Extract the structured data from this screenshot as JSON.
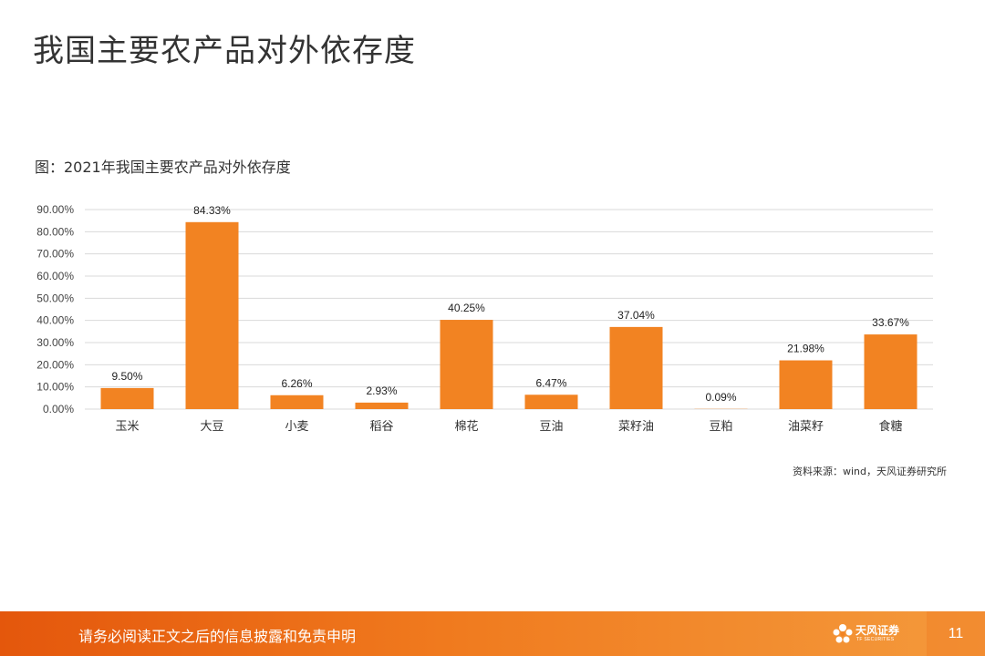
{
  "title": "我国主要农产品对外依存度",
  "caption": "图：2021年我国主要农产品对外依存度",
  "source": "资料来源：wind，天风证券研究所",
  "footer": {
    "disclaimer": "请务必阅读正文之后的信息披露和免责申明",
    "logo_text": "天风证券",
    "logo_sub": "TF SECURITIES",
    "page_number": "11"
  },
  "colors": {
    "bar": "#f28322",
    "grid": "#d9d9d9",
    "footer": "#e9650f"
  },
  "chart_data": {
    "type": "bar",
    "categories": [
      "玉米",
      "大豆",
      "小麦",
      "稻谷",
      "棉花",
      "豆油",
      "菜籽油",
      "豆粕",
      "油菜籽",
      "食糖"
    ],
    "values": [
      9.5,
      84.33,
      6.26,
      2.93,
      40.25,
      6.47,
      37.04,
      0.09,
      21.98,
      33.67
    ],
    "value_labels": [
      "9.50%",
      "84.33%",
      "6.26%",
      "2.93%",
      "40.25%",
      "6.47%",
      "37.04%",
      "0.09%",
      "21.98%",
      "33.67%"
    ],
    "yticks": [
      "0.00%",
      "10.00%",
      "20.00%",
      "30.00%",
      "40.00%",
      "50.00%",
      "60.00%",
      "70.00%",
      "80.00%",
      "90.00%"
    ],
    "ylim": [
      0,
      90
    ],
    "grid": true,
    "legend": "none"
  }
}
